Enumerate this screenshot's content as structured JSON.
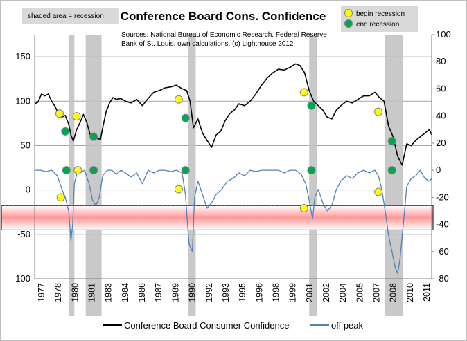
{
  "chart_data": {
    "type": "line",
    "title": "Conference Board Cons. Confidence",
    "source_lines": [
      "Sources: National Bureau of Economic Research, Federal Reserve",
      "Bank of St. Louis, own calculations. (c) Lighthouse 2012"
    ],
    "shade_note": "shaded area = recession",
    "marker_legend": [
      {
        "label": "begin recession",
        "color": "#ffff00"
      },
      {
        "label": "end recession",
        "color": "#00a651"
      }
    ],
    "left_axis": {
      "min": -100,
      "max": 175,
      "ticks": [
        -100,
        -50,
        0,
        50,
        100,
        150
      ]
    },
    "right_axis": {
      "min": -80,
      "max": 100,
      "ticks": [
        -80,
        -60,
        -40,
        -20,
        0,
        20,
        40,
        60,
        80,
        100
      ]
    },
    "x_axis": {
      "min": 1977,
      "max": 2012,
      "tick_labels": [
        "1977",
        "1978",
        "1980",
        "1981",
        "1983",
        "1984",
        "1986",
        "1987",
        "1989",
        "1990",
        "1992",
        "1993",
        "1995",
        "1996",
        "1998",
        "1999",
        "2001",
        "2002",
        "2004",
        "2005",
        "2007",
        "2008",
        "2010",
        "2011"
      ]
    },
    "grid": true,
    "legend_position": "bottom",
    "recessions": [
      [
        1980.0,
        1980.5
      ],
      [
        1981.5,
        1982.9
      ],
      [
        1990.5,
        1991.2
      ],
      [
        2001.2,
        2001.9
      ],
      [
        2007.9,
        2009.5
      ]
    ],
    "threshold": {
      "right_value": -26,
      "band_right": [
        -26,
        -44
      ],
      "color": "#c00000"
    },
    "series": [
      {
        "name": "Conference Board Consumer Confidence",
        "axis": "left",
        "color": "#000000",
        "x": [
          1977.0,
          1977.3,
          1977.6,
          1977.9,
          1978.2,
          1978.5,
          1978.8,
          1979.1,
          1979.4,
          1979.7,
          1980.0,
          1980.2,
          1980.4,
          1980.7,
          1981.0,
          1981.3,
          1981.6,
          1981.9,
          1982.2,
          1982.5,
          1982.8,
          1983.0,
          1983.3,
          1983.6,
          1983.9,
          1984.2,
          1984.6,
          1985.0,
          1985.5,
          1986.0,
          1986.5,
          1987.0,
          1987.5,
          1988.0,
          1988.5,
          1989.0,
          1989.5,
          1990.0,
          1990.4,
          1990.7,
          1991.0,
          1991.4,
          1991.8,
          1992.2,
          1992.6,
          1993.0,
          1993.4,
          1993.8,
          1994.2,
          1994.6,
          1995.0,
          1995.5,
          1996.0,
          1996.5,
          1997.0,
          1997.5,
          1998.0,
          1998.5,
          1999.0,
          1999.5,
          2000.0,
          2000.4,
          2000.8,
          2001.2,
          2001.6,
          2002.0,
          2002.4,
          2002.8,
          2003.2,
          2003.6,
          2004.0,
          2004.5,
          2005.0,
          2005.5,
          2006.0,
          2006.5,
          2007.0,
          2007.4,
          2007.8,
          2008.2,
          2008.6,
          2009.0,
          2009.4,
          2009.8,
          2010.2,
          2010.6,
          2011.0,
          2011.4,
          2011.8,
          2012.0
        ],
        "values": [
          97,
          99,
          108,
          106,
          108,
          100,
          94,
          86,
          82,
          84,
          74,
          62,
          55,
          68,
          76,
          85,
          76,
          62,
          59,
          58,
          57,
          70,
          88,
          98,
          104,
          102,
          103,
          100,
          98,
          102,
          95,
          103,
          110,
          112,
          115,
          116,
          118,
          114,
          112,
          100,
          70,
          80,
          64,
          56,
          48,
          62,
          66,
          78,
          86,
          90,
          97,
          95,
          100,
          108,
          118,
          126,
          132,
          136,
          135,
          138,
          142,
          140,
          132,
          112,
          100,
          95,
          90,
          82,
          80,
          90,
          95,
          100,
          98,
          102,
          106,
          106,
          110,
          104,
          100,
          72,
          60,
          38,
          28,
          52,
          50,
          56,
          60,
          64,
          68,
          62
        ]
      },
      {
        "name": "off peak",
        "axis": "right",
        "color": "#4f81bd",
        "x": [
          1977.0,
          1977.5,
          1978.0,
          1978.5,
          1979.0,
          1979.4,
          1979.7,
          1980.0,
          1980.2,
          1980.35,
          1980.5,
          1980.8,
          1981.0,
          1981.4,
          1981.8,
          1982.1,
          1982.4,
          1982.7,
          1983.0,
          1983.4,
          1983.8,
          1984.2,
          1984.6,
          1985.0,
          1985.5,
          1986.0,
          1986.5,
          1987.0,
          1987.5,
          1988.0,
          1988.5,
          1989.0,
          1989.5,
          1990.0,
          1990.3,
          1990.6,
          1990.9,
          1991.1,
          1991.4,
          1991.8,
          1992.2,
          1992.6,
          1993.0,
          1993.5,
          1994.0,
          1994.5,
          1995.0,
          1995.5,
          1996.0,
          1996.5,
          1997.0,
          1997.5,
          1998.0,
          1998.5,
          1999.0,
          1999.5,
          2000.0,
          2000.5,
          2000.9,
          2001.2,
          2001.5,
          2001.7,
          2002.0,
          2002.4,
          2002.8,
          2003.2,
          2003.6,
          2004.0,
          2004.5,
          2005.0,
          2005.5,
          2006.0,
          2006.5,
          2007.0,
          2007.3,
          2007.6,
          2007.9,
          2008.2,
          2008.5,
          2008.8,
          2009.0,
          2009.2,
          2009.5,
          2009.8,
          2010.2,
          2010.6,
          2011.0,
          2011.4,
          2011.8,
          2012.0
        ],
        "values": [
          0,
          0,
          -1,
          0,
          -4,
          -14,
          -20,
          -30,
          -52,
          -40,
          -10,
          0,
          -2,
          0,
          -10,
          -22,
          -26,
          -20,
          -4,
          0,
          0,
          -3,
          0,
          -2,
          -5,
          -2,
          -10,
          0,
          -2,
          0,
          0,
          -1,
          0,
          -2,
          -18,
          -54,
          -60,
          -20,
          -8,
          -18,
          -28,
          -24,
          -18,
          -14,
          -8,
          -6,
          -2,
          -4,
          0,
          -1,
          0,
          0,
          0,
          0,
          -2,
          0,
          0,
          -3,
          -10,
          -22,
          -36,
          -20,
          -14,
          -24,
          -30,
          -26,
          -14,
          -8,
          -4,
          -6,
          -2,
          0,
          -2,
          0,
          -4,
          -14,
          -30,
          -48,
          -60,
          -72,
          -76,
          -66,
          -40,
          -12,
          -6,
          -4,
          0,
          -6,
          -8,
          -6
        ]
      }
    ],
    "begin_markers": [
      {
        "x": 1979.2,
        "y": 86,
        "axis": "left"
      },
      {
        "x": 1979.3,
        "y": -20,
        "axis": "right"
      },
      {
        "x": 1980.7,
        "y": 83,
        "axis": "left"
      },
      {
        "x": 1980.8,
        "y": 0,
        "axis": "right"
      },
      {
        "x": 1989.7,
        "y": 102,
        "axis": "left"
      },
      {
        "x": 1989.7,
        "y": -14,
        "axis": "right"
      },
      {
        "x": 2000.75,
        "y": 110,
        "axis": "left"
      },
      {
        "x": 2000.75,
        "y": -28,
        "axis": "right"
      },
      {
        "x": 2007.3,
        "y": 88,
        "axis": "left"
      },
      {
        "x": 2007.3,
        "y": -16,
        "axis": "right"
      }
    ],
    "end_markers": [
      {
        "x": 1979.7,
        "y": 66,
        "axis": "left"
      },
      {
        "x": 1979.8,
        "y": 0,
        "axis": "right"
      },
      {
        "x": 1982.2,
        "y": 60,
        "axis": "left"
      },
      {
        "x": 1982.2,
        "y": 0,
        "axis": "right"
      },
      {
        "x": 1990.3,
        "y": 81,
        "axis": "left"
      },
      {
        "x": 1990.3,
        "y": 0,
        "axis": "right"
      },
      {
        "x": 2001.4,
        "y": 95,
        "axis": "left"
      },
      {
        "x": 2001.4,
        "y": 0,
        "axis": "right"
      },
      {
        "x": 2008.5,
        "y": 55,
        "axis": "left"
      },
      {
        "x": 2008.5,
        "y": 0,
        "axis": "right"
      }
    ]
  }
}
